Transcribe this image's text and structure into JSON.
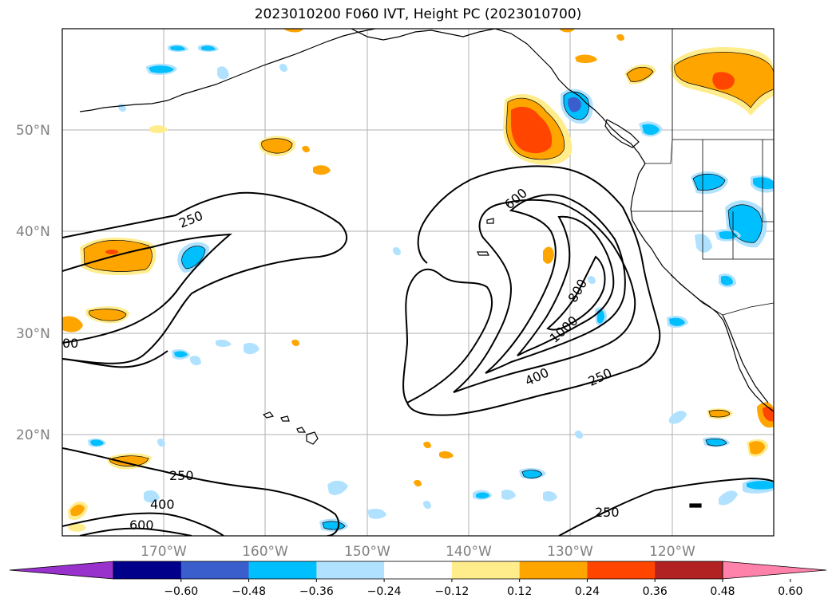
{
  "title": "2023010200 F060 IVT, Height PC (2023010700)",
  "map": {
    "lat_labels": [
      "50°N",
      "40°N",
      "30°N",
      "20°N"
    ],
    "lon_labels": [
      "170°W",
      "160°W",
      "150°W",
      "140°W",
      "130°W",
      "120°W"
    ],
    "contour_labels": [
      "250",
      "600",
      "800",
      "1000",
      "400",
      "250",
      "250",
      "400",
      "600",
      "250",
      "00"
    ]
  },
  "colorbar": {
    "colors": [
      "#9932cc",
      "#00008b",
      "#3a5fcd",
      "#00bfff",
      "#b0e2ff",
      "#ffffff",
      "#ffec8b",
      "#ffa500",
      "#ff4500",
      "#b22222",
      "#ff82ab"
    ],
    "tick_labels": [
      "−0.60",
      "−0.48",
      "−0.36",
      "−0.24",
      "−0.12",
      "0.12",
      "0.24",
      "0.36",
      "0.48",
      "0.60"
    ]
  }
}
